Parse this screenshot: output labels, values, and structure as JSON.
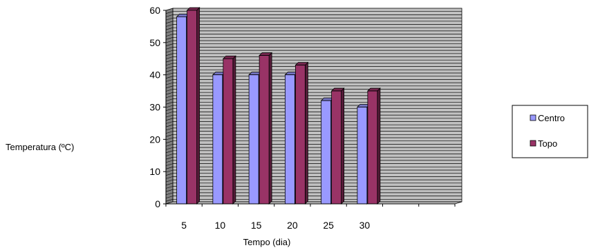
{
  "chart_data": {
    "type": "bar",
    "style": "3d-clustered-column",
    "title": "",
    "xlabel": "Tempo (dia)",
    "ylabel": "Temperatura (ºC)",
    "categories": [
      "5",
      "10",
      "15",
      "20",
      "25",
      "30",
      "",
      ""
    ],
    "series": [
      {
        "name": "Centro",
        "values": [
          58,
          40,
          40,
          40,
          32,
          30,
          null,
          null
        ],
        "color": "#9999ff"
      },
      {
        "name": "Topo",
        "values": [
          60,
          45,
          46,
          43,
          35,
          35,
          null,
          null
        ],
        "color": "#993366"
      }
    ],
    "ylim": [
      0,
      60
    ],
    "yticks": [
      "0",
      "10",
      "20",
      "30",
      "40",
      "50",
      "60"
    ],
    "grid": "horizontal",
    "plot_background": "#c0c0c0",
    "legend_position": "right"
  }
}
